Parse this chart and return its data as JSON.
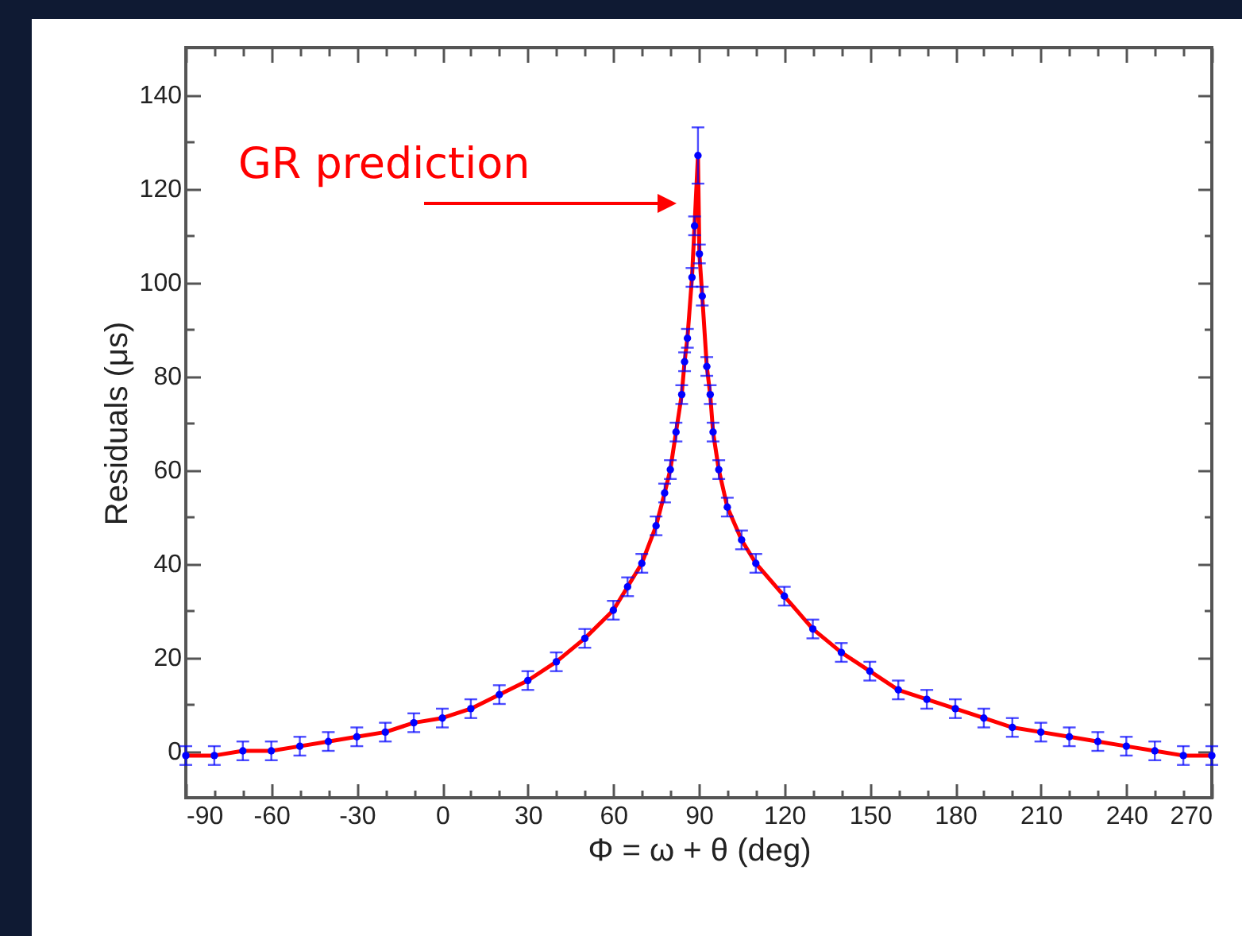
{
  "chart_data": {
    "type": "scatter",
    "xlabel": "Φ = ω + θ  (deg)",
    "ylabel": "Residuals (μs)",
    "annotations": [
      "GR prediction"
    ],
    "xlim": [
      -90,
      270
    ],
    "ylim": [
      -10,
      150
    ],
    "xticks": [
      -90,
      {
        "value": -80,
        "label": null
      },
      {
        "value": -70,
        "label": null
      },
      -60,
      {
        "value": -50,
        "label": null
      },
      {
        "value": -40,
        "label": null
      },
      -30,
      {
        "value": -20,
        "label": null
      },
      {
        "value": -10,
        "label": null
      },
      0,
      {
        "value": 10,
        "label": null
      },
      {
        "value": 20,
        "label": null
      },
      30,
      {
        "value": 40,
        "label": null
      },
      {
        "value": 50,
        "label": null
      },
      60,
      {
        "value": 70,
        "label": null
      },
      {
        "value": 80,
        "label": null
      },
      90,
      {
        "value": 100,
        "label": null
      },
      {
        "value": 110,
        "label": null
      },
      120,
      {
        "value": 130,
        "label": null
      },
      {
        "value": 140,
        "label": null
      },
      150,
      {
        "value": 160,
        "label": null
      },
      {
        "value": 170,
        "label": null
      },
      180,
      {
        "value": 190,
        "label": null
      },
      {
        "value": 200,
        "label": null
      },
      210,
      {
        "value": 220,
        "label": null
      },
      {
        "value": 230,
        "label": null
      },
      240,
      {
        "value": 250,
        "label": null
      },
      {
        "value": 260,
        "label": null
      },
      270
    ],
    "yticks": [
      0,
      {
        "value": 10,
        "label": null
      },
      20,
      {
        "value": 30,
        "label": null
      },
      40,
      {
        "value": 50,
        "label": null
      },
      60,
      {
        "value": 70,
        "label": null
      },
      80,
      {
        "value": 90,
        "label": null
      },
      100,
      {
        "value": 110,
        "label": null
      },
      120,
      {
        "value": 130,
        "label": null
      },
      140
    ],
    "series": [
      {
        "type": "line",
        "color": "#ff0000",
        "line_style": "solid",
        "marker": "none",
        "x": [
          -90,
          -80,
          -70,
          -60,
          -50,
          -40,
          -30,
          -20,
          -10,
          0,
          10,
          20,
          30,
          40,
          50,
          60,
          65,
          70,
          75,
          78,
          80,
          82,
          84,
          85,
          86,
          87.6,
          88.5,
          89.7,
          90.2,
          91.2,
          92.8,
          94,
          95,
          97,
          100,
          105,
          110,
          120,
          130,
          140,
          150,
          160,
          170,
          180,
          190,
          200,
          210,
          220,
          230,
          240,
          250,
          260,
          270
        ],
        "values": [
          -1,
          -1,
          0,
          0,
          1,
          2,
          3,
          4,
          6,
          7,
          9,
          12,
          15,
          19,
          24,
          30,
          35,
          40,
          48,
          55,
          60,
          68,
          76,
          83,
          88,
          101,
          112,
          127,
          106,
          97,
          82,
          76,
          68,
          60,
          52,
          45,
          40,
          33,
          26,
          21,
          17,
          13,
          11,
          9,
          7,
          5,
          4,
          3,
          2,
          1,
          0,
          -1,
          -1
        ]
      },
      {
        "type": "scatter",
        "color": "#0000ff",
        "marker": "circle",
        "x": [
          -90,
          -80,
          -70,
          -60,
          -50,
          -40,
          -30,
          -20,
          -10,
          0,
          10,
          20,
          30,
          40,
          50,
          60,
          65,
          70,
          75,
          78,
          80,
          82,
          84,
          85,
          86,
          87.6,
          88.5,
          89.7,
          90.2,
          91.2,
          92.8,
          94,
          95,
          97,
          100,
          105,
          110,
          120,
          130,
          140,
          150,
          160,
          170,
          180,
          190,
          200,
          210,
          220,
          230,
          240,
          250,
          260,
          270
        ],
        "values": [
          -1,
          -1,
          0,
          0,
          1,
          2,
          3,
          4,
          6,
          7,
          9,
          12,
          15,
          19,
          24,
          30,
          35,
          40,
          48,
          55,
          60,
          68,
          76,
          83,
          88,
          101,
          112,
          127,
          106,
          97,
          82,
          76,
          68,
          60,
          52,
          45,
          40,
          33,
          26,
          21,
          17,
          13,
          11,
          9,
          7,
          5,
          4,
          3,
          2,
          1,
          0,
          -1,
          -1
        ],
        "errors": [
          2,
          2,
          2,
          2,
          2,
          2,
          2,
          2,
          2,
          2,
          2,
          2,
          2,
          2,
          2,
          2,
          2,
          2,
          2,
          2,
          2,
          2,
          2,
          2,
          2,
          2,
          2,
          6,
          2,
          2,
          2,
          2,
          2,
          2,
          2,
          2,
          2,
          2,
          2,
          2,
          2,
          2,
          2,
          2,
          2,
          2,
          2,
          2,
          2,
          2,
          2,
          2,
          2
        ]
      }
    ]
  }
}
